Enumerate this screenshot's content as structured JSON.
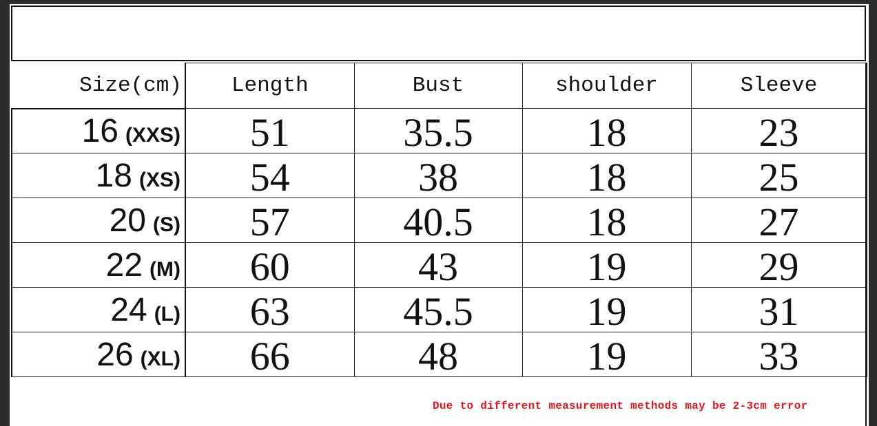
{
  "table": {
    "headers": [
      "Size(cm)",
      "Length",
      "Bust",
      "shoulder",
      "Sleeve"
    ],
    "rows": [
      {
        "size": "16",
        "label": "(XXS)",
        "values": [
          "51",
          "35.5",
          "18",
          "23"
        ]
      },
      {
        "size": "18",
        "label": "(XS)",
        "values": [
          "54",
          "38",
          "18",
          "25"
        ]
      },
      {
        "size": "20",
        "label": "(S)",
        "values": [
          "57",
          "40.5",
          "18",
          "27"
        ]
      },
      {
        "size": "22",
        "label": "(M)",
        "values": [
          "60",
          "43",
          "19",
          "29"
        ]
      },
      {
        "size": "24",
        "label": "(L)",
        "values": [
          "63",
          "45.5",
          "19",
          "31"
        ]
      },
      {
        "size": "26",
        "label": "(XL)",
        "values": [
          "66",
          "48",
          "19",
          "33"
        ]
      }
    ]
  },
  "note": "Due to different measurement methods may be 2-3cm error",
  "colors": {
    "note": "#e8141b",
    "background": "#2b2b2b"
  }
}
